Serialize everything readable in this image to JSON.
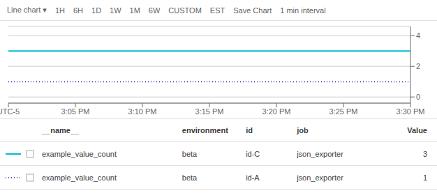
{
  "chart_data": {
    "type": "line",
    "categories": [
      "UTC-5",
      "3:05 PM",
      "3:10 PM",
      "3:15 PM",
      "3:20 PM",
      "3:25 PM",
      "3:30 PM"
    ],
    "series": [
      {
        "color": "#00bcd4",
        "values": [
          3,
          3,
          3,
          3,
          3,
          3,
          3
        ],
        "line_style": "solid"
      },
      {
        "color": "#4051b5",
        "values": [
          1,
          1,
          1,
          1,
          1,
          1,
          1
        ],
        "line_style": "dotted"
      }
    ],
    "ylim": [
      -0.4,
      4.6
    ],
    "yticks": [
      0,
      2,
      4
    ],
    "grid": true,
    "annotations": [
      "Line chart ▾",
      "1H",
      "6H",
      "1D",
      "1W",
      "1M",
      "6W",
      "CUSTOM",
      "EST",
      "Save Chart",
      "1 min interval"
    ],
    "table": {
      "columns": [
        "__name__",
        "environment",
        "id",
        "job",
        "Value"
      ],
      "rows": [
        [
          "example_value_count",
          "beta",
          "id-C",
          "json_exporter",
          "3"
        ],
        [
          "example_value_count",
          "beta",
          "id-A",
          "json_exporter",
          "1"
        ]
      ]
    }
  }
}
